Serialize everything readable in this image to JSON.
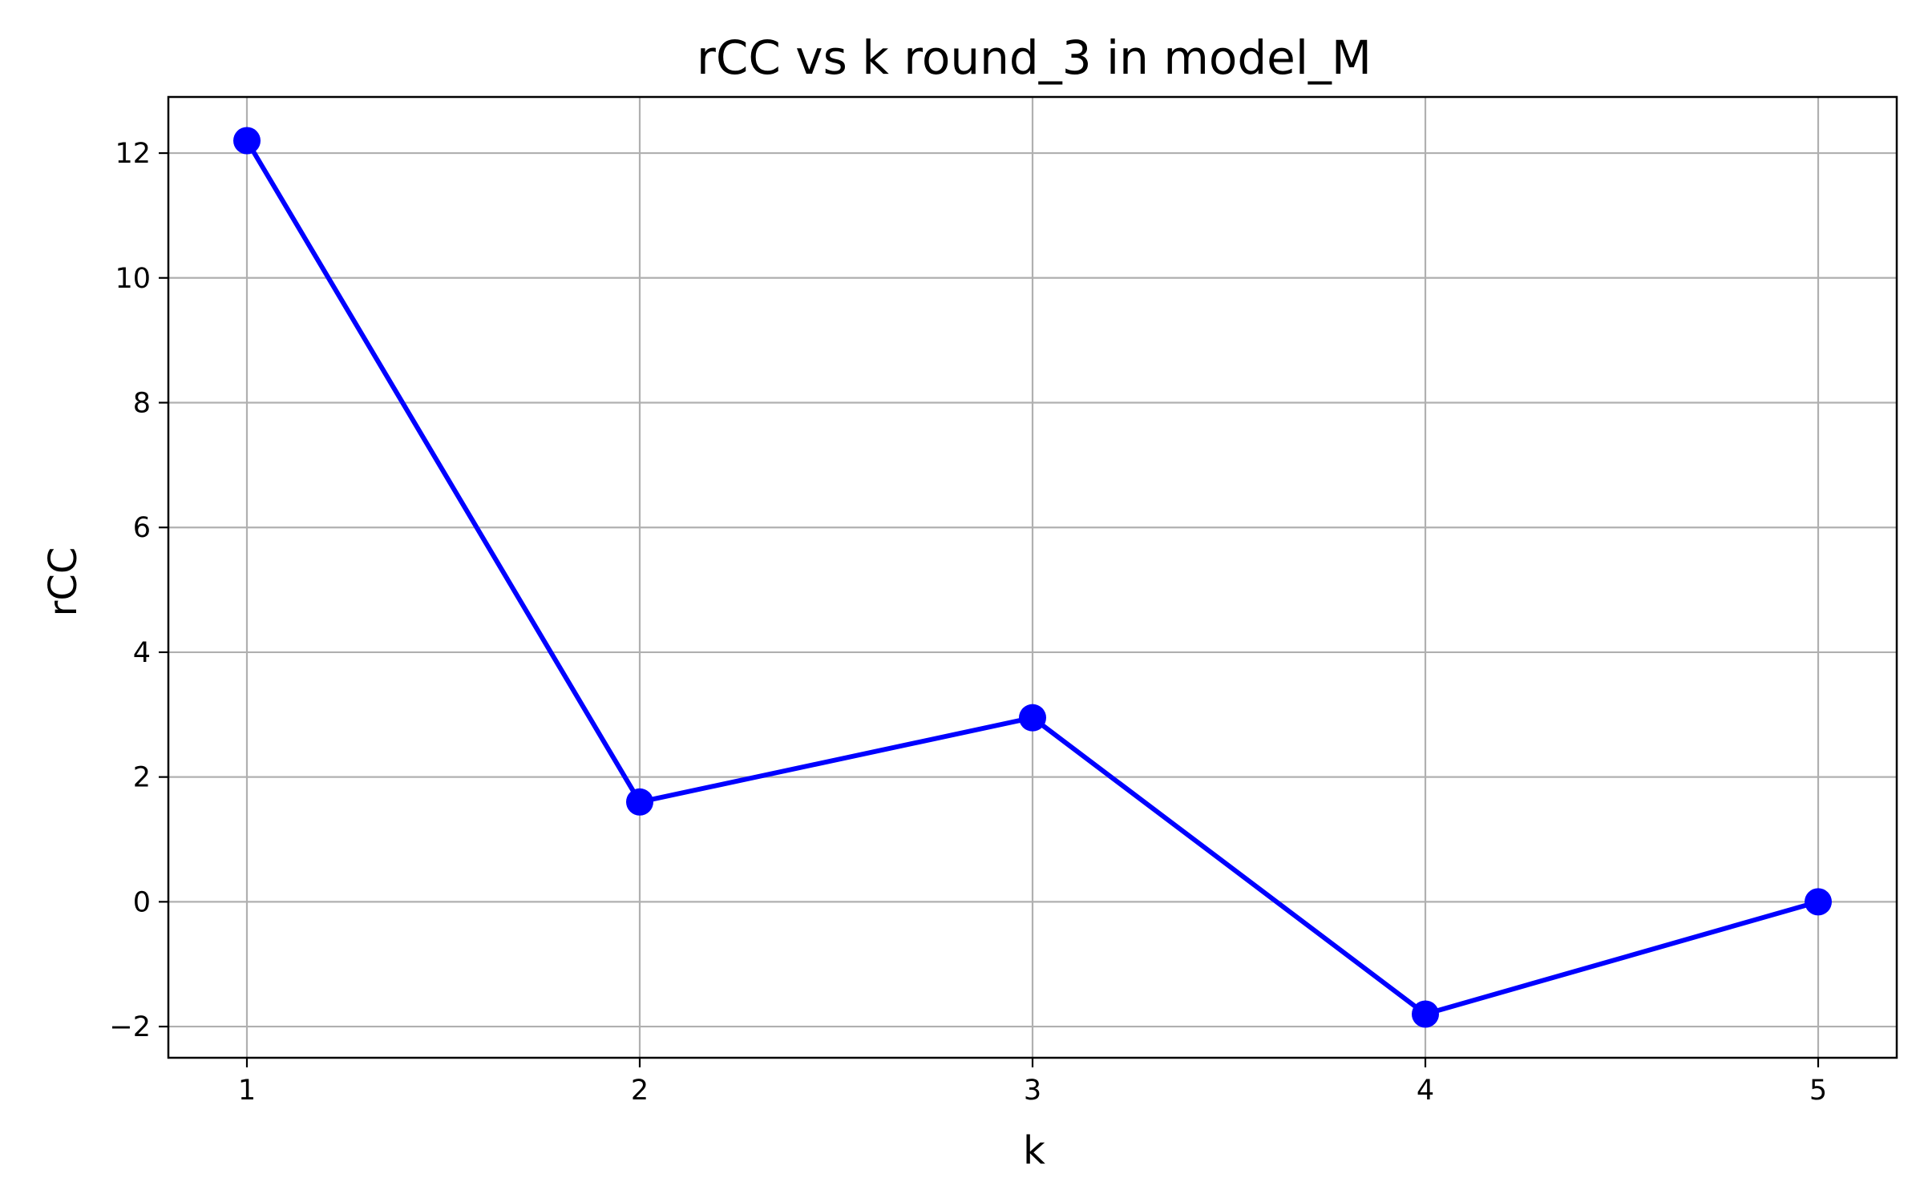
{
  "chart_data": {
    "type": "line",
    "title": "rCC vs k round_3 in model_M",
    "xlabel": "k",
    "ylabel": "rCC",
    "x": [
      1,
      2,
      3,
      4,
      5
    ],
    "series": [
      {
        "values": [
          12.2,
          1.6,
          2.95,
          -1.8,
          0.0
        ],
        "color": "#0000ff",
        "marker": "circle"
      }
    ],
    "xlim": [
      0.8,
      5.2
    ],
    "ylim": [
      -2.5,
      12.9
    ],
    "x_ticks": [
      1,
      2,
      3,
      4,
      5
    ],
    "x_tick_labels": [
      "1",
      "2",
      "3",
      "4",
      "5"
    ],
    "y_ticks": [
      -2,
      0,
      2,
      4,
      6,
      8,
      10,
      12
    ],
    "y_tick_labels": [
      "−2",
      "0",
      "2",
      "4",
      "6",
      "8",
      "10",
      "12"
    ],
    "grid": true,
    "grid_color": "#b0b0b0",
    "legend": false
  }
}
